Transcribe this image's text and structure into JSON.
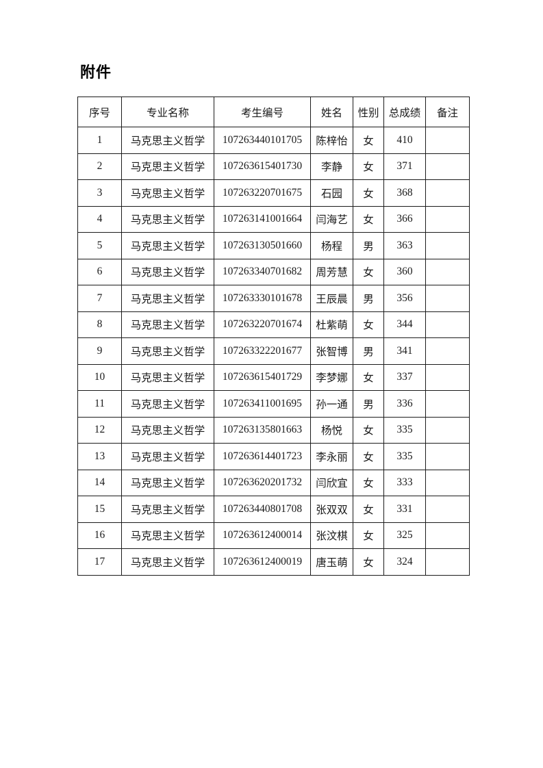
{
  "page": {
    "title": "附件"
  },
  "colors": {
    "background": "#ffffff",
    "text": "#1a1a1a",
    "border": "#1a1a1a"
  },
  "table": {
    "headers": [
      "序号",
      "专业名称",
      "考生编号",
      "姓名",
      "性别",
      "总成绩",
      "备注"
    ],
    "column_keys": [
      "no",
      "major",
      "candidate_id",
      "name",
      "gender",
      "score",
      "remark"
    ],
    "rows": [
      {
        "no": "1",
        "major": "马克思主义哲学",
        "candidate_id": "107263440101705",
        "name": "陈梓怡",
        "gender": "女",
        "score": "410",
        "remark": ""
      },
      {
        "no": "2",
        "major": "马克思主义哲学",
        "candidate_id": "107263615401730",
        "name": "李静",
        "gender": "女",
        "score": "371",
        "remark": ""
      },
      {
        "no": "3",
        "major": "马克思主义哲学",
        "candidate_id": "107263220701675",
        "name": "石园",
        "gender": "女",
        "score": "368",
        "remark": ""
      },
      {
        "no": "4",
        "major": "马克思主义哲学",
        "candidate_id": "107263141001664",
        "name": "闫海艺",
        "gender": "女",
        "score": "366",
        "remark": ""
      },
      {
        "no": "5",
        "major": "马克思主义哲学",
        "candidate_id": "107263130501660",
        "name": "杨程",
        "gender": "男",
        "score": "363",
        "remark": ""
      },
      {
        "no": "6",
        "major": "马克思主义哲学",
        "candidate_id": "107263340701682",
        "name": "周芳慧",
        "gender": "女",
        "score": "360",
        "remark": ""
      },
      {
        "no": "7",
        "major": "马克思主义哲学",
        "candidate_id": "107263330101678",
        "name": "王辰晨",
        "gender": "男",
        "score": "356",
        "remark": ""
      },
      {
        "no": "8",
        "major": "马克思主义哲学",
        "candidate_id": "107263220701674",
        "name": "杜紫萌",
        "gender": "女",
        "score": "344",
        "remark": ""
      },
      {
        "no": "9",
        "major": "马克思主义哲学",
        "candidate_id": "107263322201677",
        "name": "张智博",
        "gender": "男",
        "score": "341",
        "remark": ""
      },
      {
        "no": "10",
        "major": "马克思主义哲学",
        "candidate_id": "107263615401729",
        "name": "李梦娜",
        "gender": "女",
        "score": "337",
        "remark": ""
      },
      {
        "no": "11",
        "major": "马克思主义哲学",
        "candidate_id": "107263411001695",
        "name": "孙一通",
        "gender": "男",
        "score": "336",
        "remark": ""
      },
      {
        "no": "12",
        "major": "马克思主义哲学",
        "candidate_id": "107263135801663",
        "name": "杨悦",
        "gender": "女",
        "score": "335",
        "remark": ""
      },
      {
        "no": "13",
        "major": "马克思主义哲学",
        "candidate_id": "107263614401723",
        "name": "李永丽",
        "gender": "女",
        "score": "335",
        "remark": ""
      },
      {
        "no": "14",
        "major": "马克思主义哲学",
        "candidate_id": "107263620201732",
        "name": "闫欣宜",
        "gender": "女",
        "score": "333",
        "remark": ""
      },
      {
        "no": "15",
        "major": "马克思主义哲学",
        "candidate_id": "107263440801708",
        "name": "张双双",
        "gender": "女",
        "score": "331",
        "remark": ""
      },
      {
        "no": "16",
        "major": "马克思主义哲学",
        "candidate_id": "107263612400014",
        "name": "张汶棋",
        "gender": "女",
        "score": "325",
        "remark": ""
      },
      {
        "no": "17",
        "major": "马克思主义哲学",
        "candidate_id": "107263612400019",
        "name": "唐玉萌",
        "gender": "女",
        "score": "324",
        "remark": ""
      }
    ]
  }
}
